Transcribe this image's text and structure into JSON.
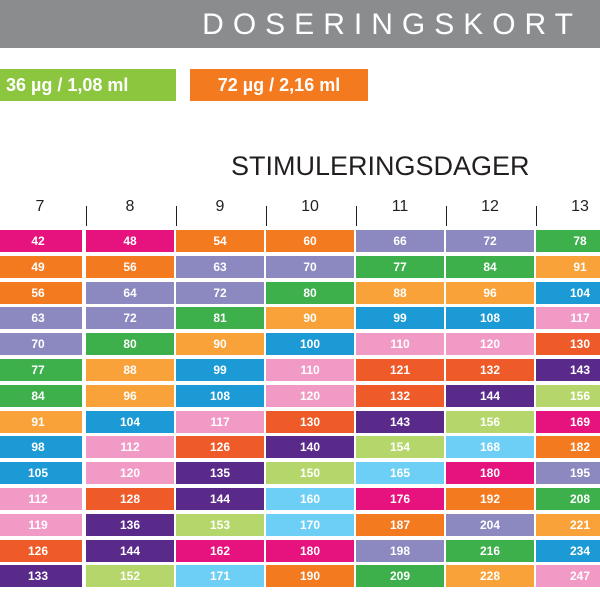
{
  "header": {
    "title": "DOSERINGSKORT"
  },
  "pills": {
    "green": "36 µg / 1,08 ml",
    "orange": "72 µg / 2,16 ml"
  },
  "section_title": "STIMULERINGSDAGER",
  "days": [
    "7",
    "8",
    "9",
    "10",
    "11",
    "12",
    "13"
  ],
  "colors": {
    "magenta": "#e6137e",
    "orange": "#f47a20",
    "lavender": "#8c89c0",
    "green": "#3db04b",
    "light_orange": "#f9a23a",
    "blue": "#1c9ad6",
    "pink": "#f29ac6",
    "red": "#ee5a28",
    "purple": "#5a2a8b",
    "lime": "#b5d66a",
    "cyan": "#6dcff6"
  },
  "rows": [
    [
      {
        "v": "42",
        "c": "magenta"
      },
      {
        "v": "48",
        "c": "magenta"
      },
      {
        "v": "54",
        "c": "orange"
      },
      {
        "v": "60",
        "c": "orange"
      },
      {
        "v": "66",
        "c": "lavender"
      },
      {
        "v": "72",
        "c": "lavender"
      },
      {
        "v": "78",
        "c": "green"
      }
    ],
    [
      {
        "v": "49",
        "c": "orange"
      },
      {
        "v": "56",
        "c": "orange"
      },
      {
        "v": "63",
        "c": "lavender"
      },
      {
        "v": "70",
        "c": "lavender"
      },
      {
        "v": "77",
        "c": "green"
      },
      {
        "v": "84",
        "c": "green"
      },
      {
        "v": "91",
        "c": "light_orange"
      }
    ],
    [
      {
        "v": "56",
        "c": "orange"
      },
      {
        "v": "64",
        "c": "lavender"
      },
      {
        "v": "72",
        "c": "lavender"
      },
      {
        "v": "80",
        "c": "green"
      },
      {
        "v": "88",
        "c": "light_orange"
      },
      {
        "v": "96",
        "c": "light_orange"
      },
      {
        "v": "104",
        "c": "blue"
      }
    ],
    [
      {
        "v": "63",
        "c": "lavender"
      },
      {
        "v": "72",
        "c": "lavender"
      },
      {
        "v": "81",
        "c": "green"
      },
      {
        "v": "90",
        "c": "light_orange"
      },
      {
        "v": "99",
        "c": "blue"
      },
      {
        "v": "108",
        "c": "blue"
      },
      {
        "v": "117",
        "c": "pink"
      }
    ],
    [
      {
        "v": "70",
        "c": "lavender"
      },
      {
        "v": "80",
        "c": "green"
      },
      {
        "v": "90",
        "c": "light_orange"
      },
      {
        "v": "100",
        "c": "blue"
      },
      {
        "v": "110",
        "c": "pink"
      },
      {
        "v": "120",
        "c": "pink"
      },
      {
        "v": "130",
        "c": "red"
      }
    ],
    [
      {
        "v": "77",
        "c": "green"
      },
      {
        "v": "88",
        "c": "light_orange"
      },
      {
        "v": "99",
        "c": "blue"
      },
      {
        "v": "110",
        "c": "pink"
      },
      {
        "v": "121",
        "c": "red"
      },
      {
        "v": "132",
        "c": "red"
      },
      {
        "v": "143",
        "c": "purple"
      }
    ],
    [
      {
        "v": "84",
        "c": "green"
      },
      {
        "v": "96",
        "c": "light_orange"
      },
      {
        "v": "108",
        "c": "blue"
      },
      {
        "v": "120",
        "c": "pink"
      },
      {
        "v": "132",
        "c": "red"
      },
      {
        "v": "144",
        "c": "purple"
      },
      {
        "v": "156",
        "c": "lime"
      }
    ],
    [
      {
        "v": "91",
        "c": "light_orange"
      },
      {
        "v": "104",
        "c": "blue"
      },
      {
        "v": "117",
        "c": "pink"
      },
      {
        "v": "130",
        "c": "red"
      },
      {
        "v": "143",
        "c": "purple"
      },
      {
        "v": "156",
        "c": "lime"
      },
      {
        "v": "169",
        "c": "magenta"
      }
    ],
    [
      {
        "v": "98",
        "c": "blue"
      },
      {
        "v": "112",
        "c": "pink"
      },
      {
        "v": "126",
        "c": "red"
      },
      {
        "v": "140",
        "c": "purple"
      },
      {
        "v": "154",
        "c": "lime"
      },
      {
        "v": "168",
        "c": "cyan"
      },
      {
        "v": "182",
        "c": "orange"
      }
    ],
    [
      {
        "v": "105",
        "c": "blue"
      },
      {
        "v": "120",
        "c": "pink"
      },
      {
        "v": "135",
        "c": "purple"
      },
      {
        "v": "150",
        "c": "lime"
      },
      {
        "v": "165",
        "c": "cyan"
      },
      {
        "v": "180",
        "c": "magenta"
      },
      {
        "v": "195",
        "c": "lavender"
      }
    ],
    [
      {
        "v": "112",
        "c": "pink"
      },
      {
        "v": "128",
        "c": "red"
      },
      {
        "v": "144",
        "c": "purple"
      },
      {
        "v": "160",
        "c": "cyan"
      },
      {
        "v": "176",
        "c": "magenta"
      },
      {
        "v": "192",
        "c": "orange"
      },
      {
        "v": "208",
        "c": "green"
      }
    ],
    [
      {
        "v": "119",
        "c": "pink"
      },
      {
        "v": "136",
        "c": "purple"
      },
      {
        "v": "153",
        "c": "lime"
      },
      {
        "v": "170",
        "c": "cyan"
      },
      {
        "v": "187",
        "c": "orange"
      },
      {
        "v": "204",
        "c": "lavender"
      },
      {
        "v": "221",
        "c": "light_orange"
      }
    ],
    [
      {
        "v": "126",
        "c": "red"
      },
      {
        "v": "144",
        "c": "purple"
      },
      {
        "v": "162",
        "c": "magenta"
      },
      {
        "v": "180",
        "c": "magenta"
      },
      {
        "v": "198",
        "c": "lavender"
      },
      {
        "v": "216",
        "c": "green"
      },
      {
        "v": "234",
        "c": "blue"
      }
    ],
    [
      {
        "v": "133",
        "c": "purple"
      },
      {
        "v": "152",
        "c": "lime"
      },
      {
        "v": "171",
        "c": "cyan"
      },
      {
        "v": "190",
        "c": "orange"
      },
      {
        "v": "209",
        "c": "green"
      },
      {
        "v": "228",
        "c": "light_orange"
      },
      {
        "v": "247",
        "c": "pink"
      }
    ]
  ]
}
